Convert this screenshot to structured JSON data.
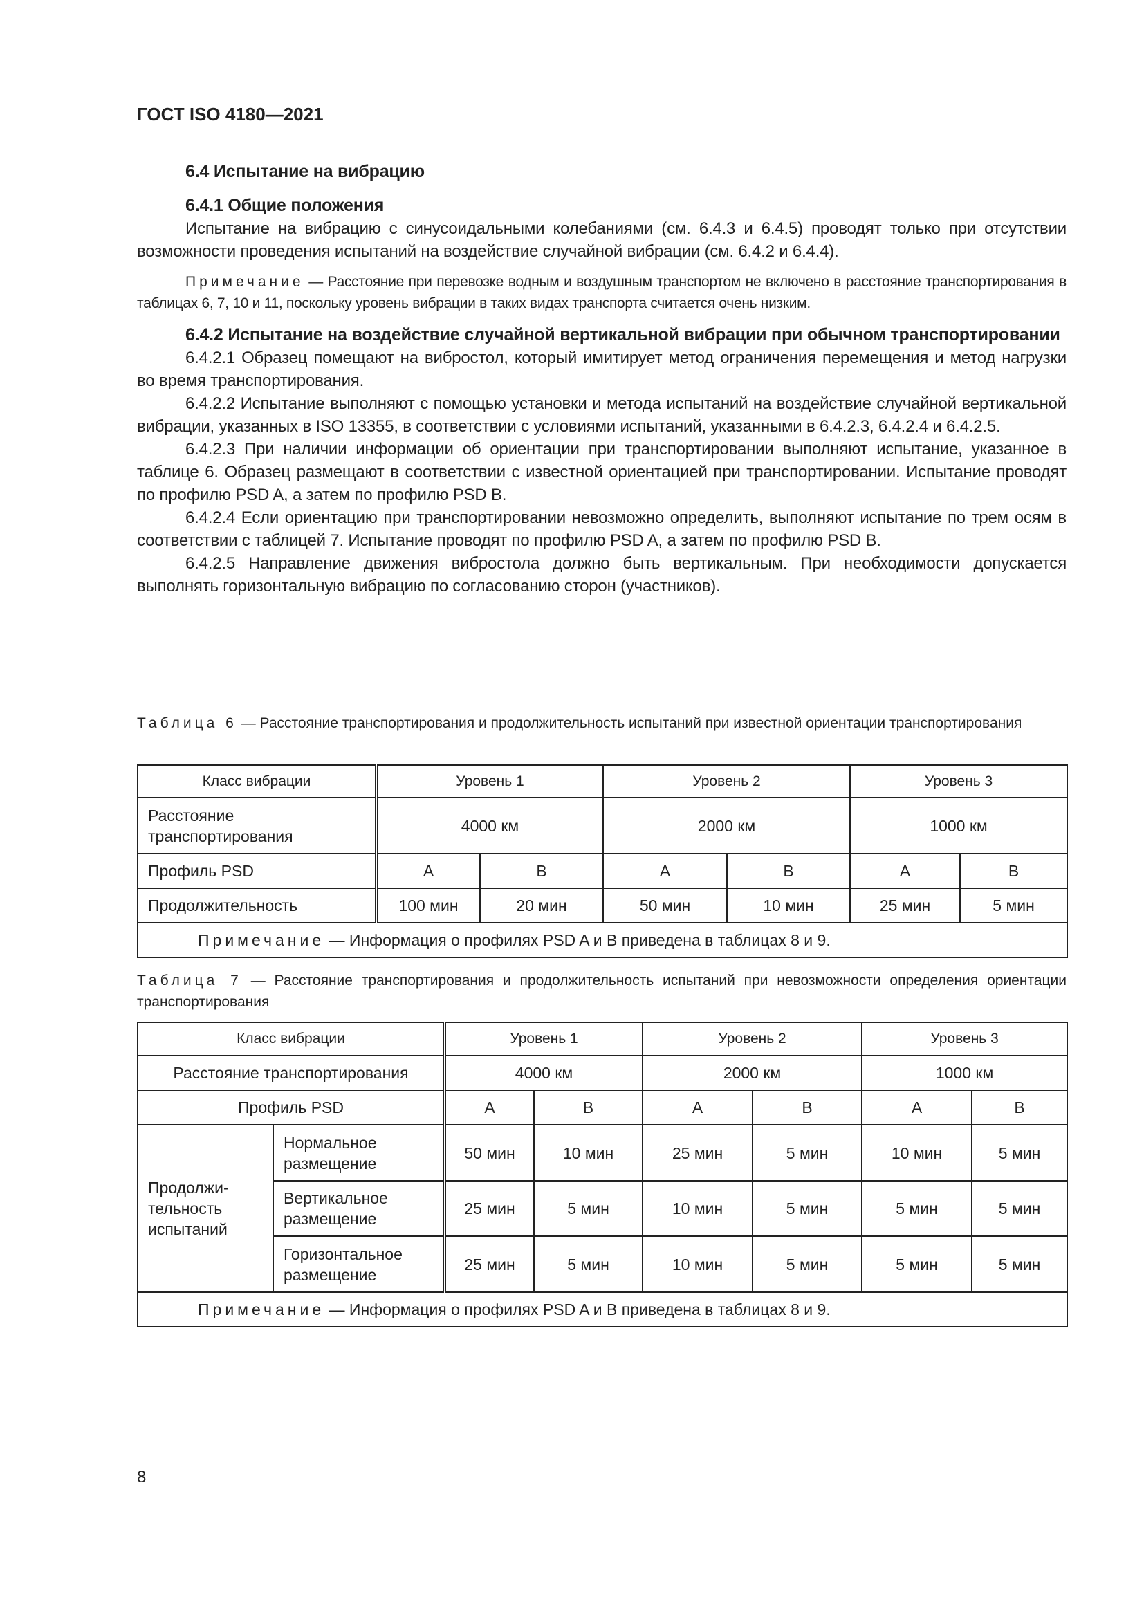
{
  "header": "ГОСТ ISO 4180—2021",
  "s64": "6.4 Испытание на вибрацию",
  "s641": "6.4.1 Общие положения",
  "p641": "Испытание на вибрацию с синусоидальными колебаниями (см. 6.4.3 и 6.4.5) проводят только при отсутствии возможности проведения испытаний на воздействие случайной вибрации (см. 6.4.2 и 6.4.4).",
  "note_label": "Примечание",
  "note1": " — Расстояние при перевозке водным и воздушным транспортом не включено в расстояние транспортирования в таблицах 6, 7, 10 и 11, поскольку уровень вибрации в таких видах транспорта считается очень низким.",
  "s642": "6.4.2 Испытание на воздействие случайной вертикальной вибрации при обычном транспортировании",
  "paras": [
    "6.4.2.1 Образец помещают на вибростол, который имитирует метод ограничения перемещения и метод нагрузки во время транспортирования.",
    "6.4.2.2 Испытание выполняют с помощью установки и метода испытаний на воздействие случайной вертикальной вибрации, указанных в ISO 13355, в соответствии с условиями испытаний, указанными в 6.4.2.3, 6.4.2.4 и 6.4.2.5.",
    "6.4.2.3 При наличии информации об ориентации при транспортировании выполняют испытание, указанное в таблице 6. Образец размещают в соответствии с известной ориентацией при транспортировании. Испытание проводят по профилю PSD A, а затем по профилю PSD B.",
    "6.4.2.4 Если ориентацию при транспортировании невозможно определить, выполняют испытание по трем осям в соответствии с таблицей 7. Испытание проводят по профилю PSD A, а затем по профилю PSD B.",
    "6.4.2.5 Направление движения вибростола должно быть вертикальным. При необходимости допускается выполнять горизонтальную вибрацию по согласованию сторон (участников)."
  ],
  "table6": {
    "label": "Таблица 6",
    "caption": " — Расстояние транспортирования и продолжительность испытаний при известной ориентации транспортирования",
    "class": "Класс вибрации",
    "levels": [
      "Уровень 1",
      "Уровень 2",
      "Уровень 3"
    ],
    "distance_label": "Расстояние транспортирования",
    "distances": [
      "4000 км",
      "2000 км",
      "1000 км"
    ],
    "profile_label": "Профиль PSD",
    "profiles": [
      "A",
      "B",
      "A",
      "B",
      "A",
      "B"
    ],
    "duration_label": "Продолжительность",
    "durations": [
      "100 мин",
      "20 мин",
      "50 мин",
      "10 мин",
      "25 мин",
      "5 мин"
    ],
    "note": " — Информация о профилях PSD A и B приведена в таблицах 8 и 9."
  },
  "table7": {
    "label": "Таблица 7",
    "caption": " — Расстояние транспортирования и продолжительность испытаний при невозможности определения ориентации транспортирования",
    "class": "Класс вибрации",
    "levels": [
      "Уровень 1",
      "Уровень 2",
      "Уровень 3"
    ],
    "distance_label": "Расстояние транспортирования",
    "distances": [
      "4000 км",
      "2000 км",
      "1000 км"
    ],
    "profile_label": "Профиль PSD",
    "profiles": [
      "A",
      "B",
      "A",
      "B",
      "A",
      "B"
    ],
    "duration_label": "Продолжи-тельность испытаний",
    "rows": [
      {
        "label": "Нормальное размещение",
        "values": [
          "50 мин",
          "10 мин",
          "25 мин",
          "5 мин",
          "10 мин",
          "5 мин"
        ]
      },
      {
        "label": "Вертикальное размещение",
        "values": [
          "25 мин",
          "5 мин",
          "10 мин",
          "5 мин",
          "5 мин",
          "5 мин"
        ]
      },
      {
        "label": "Горизонтальное размещение",
        "values": [
          "25 мин",
          "5 мин",
          "10 мин",
          "5 мин",
          "5 мин",
          "5 мин"
        ]
      }
    ],
    "note": " — Информация о профилях PSD A и B приведена в таблицах 8 и 9."
  },
  "page_number": "8"
}
